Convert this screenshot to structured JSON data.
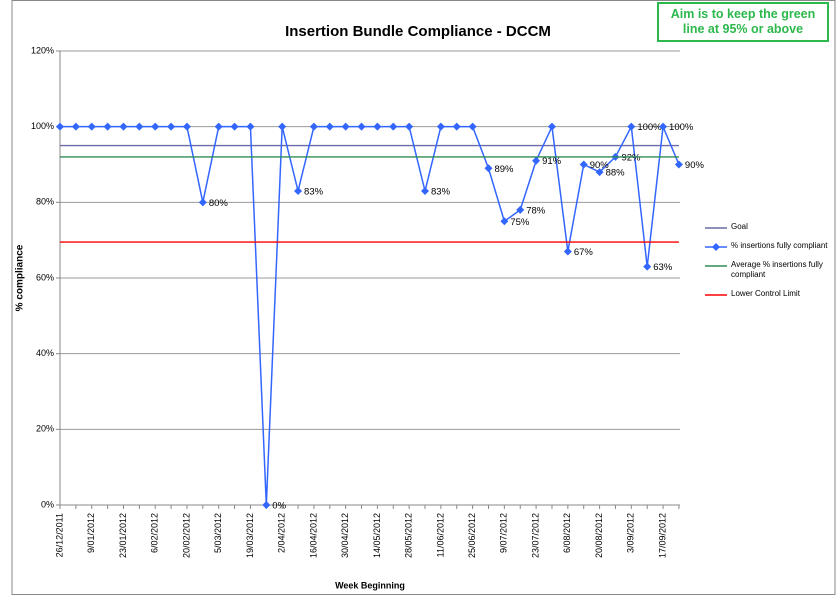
{
  "chart_data": {
    "type": "line",
    "title": "Insertion Bundle Compliance - DCCM",
    "xlabel": "Week Beginning",
    "ylabel": "% compliance",
    "annotation": "Aim is to keep the green line at 95% or above",
    "categories": [
      "26/12/2011",
      null,
      "9/01/2012",
      null,
      "23/01/2012",
      null,
      "6/02/2012",
      null,
      "20/02/2012",
      null,
      "5/03/2012",
      null,
      "19/03/2012",
      null,
      "2/04/2012",
      null,
      "16/04/2012",
      null,
      "30/04/2012",
      null,
      "14/05/2012",
      null,
      "28/05/2012",
      null,
      "11/06/2012",
      null,
      "25/06/2012",
      null,
      "9/07/2012",
      null,
      "23/07/2012",
      null,
      "6/08/2012",
      null,
      "20/08/2012",
      null,
      "3/09/2012",
      null,
      "17/09/2012",
      null
    ],
    "series": [
      {
        "name": "Goal",
        "color": "#6a6aa6",
        "marker": false,
        "values": [
          95,
          95,
          95,
          95,
          95,
          95,
          95,
          95,
          95,
          95,
          95,
          95,
          95,
          95,
          95,
          95,
          95,
          95,
          95,
          95,
          95,
          95,
          95,
          95,
          95,
          95,
          95,
          95,
          95,
          95,
          95,
          95,
          95,
          95,
          95,
          95,
          95,
          95,
          95,
          95
        ]
      },
      {
        "name": "% insertions fully compliant",
        "color": "#3366ff",
        "marker": true,
        "values": [
          100,
          100,
          100,
          100,
          100,
          100,
          100,
          100,
          100,
          80,
          100,
          100,
          100,
          0,
          100,
          83,
          100,
          100,
          100,
          100,
          100,
          100,
          100,
          83,
          100,
          100,
          100,
          89,
          75,
          78,
          91,
          100,
          67,
          90,
          88,
          92,
          100,
          63,
          100,
          90
        ],
        "value_labels": [
          null,
          null,
          null,
          null,
          null,
          null,
          null,
          null,
          null,
          "80%",
          null,
          null,
          null,
          "0%",
          null,
          "83%",
          null,
          null,
          null,
          null,
          null,
          null,
          null,
          "83%",
          null,
          null,
          null,
          "89%",
          "75%",
          "78%",
          "91%",
          null,
          "67%",
          "90%",
          "88%",
          "92%",
          "100%",
          "63%",
          "100%",
          "90%"
        ]
      },
      {
        "name": "Average % insertions fully compliant",
        "color": "#2e8b57",
        "marker": false,
        "values": [
          92,
          92,
          92,
          92,
          92,
          92,
          92,
          92,
          92,
          92,
          92,
          92,
          92,
          92,
          92,
          92,
          92,
          92,
          92,
          92,
          92,
          92,
          92,
          92,
          92,
          92,
          92,
          92,
          92,
          92,
          92,
          92,
          92,
          92,
          92,
          92,
          92,
          92,
          92,
          92
        ]
      },
      {
        "name": "Lower Control Limit",
        "color": "#ff0000",
        "marker": false,
        "values": [
          69.5,
          69.5,
          69.5,
          69.5,
          69.5,
          69.5,
          69.5,
          69.5,
          69.5,
          69.5,
          69.5,
          69.5,
          69.5,
          69.5,
          69.5,
          69.5,
          69.5,
          69.5,
          69.5,
          69.5,
          69.5,
          69.5,
          69.5,
          69.5,
          69.5,
          69.5,
          69.5,
          69.5,
          69.5,
          69.5,
          69.5,
          69.5,
          69.5,
          69.5,
          69.5,
          69.5,
          69.5,
          69.5,
          69.5,
          69.5
        ]
      }
    ],
    "ylim": [
      0,
      120
    ],
    "yticks": [
      {
        "value": 0,
        "label": "0%"
      },
      {
        "value": 20,
        "label": "20%"
      },
      {
        "value": 40,
        "label": "40%"
      },
      {
        "value": 60,
        "label": "60%"
      },
      {
        "value": 80,
        "label": "80%"
      },
      {
        "value": 100,
        "label": "100%"
      },
      {
        "value": 120,
        "label": "120%"
      }
    ],
    "grid": true,
    "legend": "right"
  }
}
